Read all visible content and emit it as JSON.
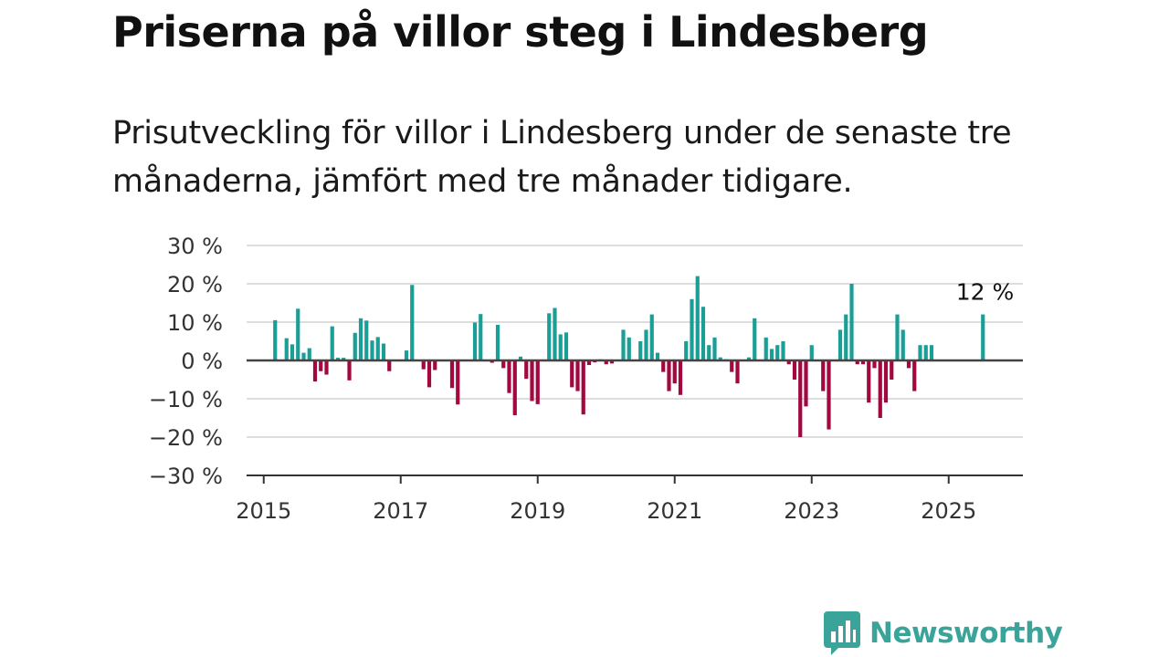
{
  "title": "Priserna på villor steg i Lindesberg",
  "subtitle": "Prisutveckling för villor i Lindesberg under de senaste tre månaderna, jämfört med tre månader tidigare.",
  "brand": {
    "name": "Newsworthy",
    "color": "#3aa39a"
  },
  "colors": {
    "positive": "#1a9e96",
    "negative": "#a3073f",
    "grid": "#dddddd",
    "axis": "#333333",
    "zero": "#444444"
  },
  "chart_data": {
    "type": "bar",
    "title": "Priserna på villor steg i Lindesberg",
    "xlabel": "",
    "ylabel": "",
    "ylim": [
      -30,
      30
    ],
    "xlim": [
      "2014-10",
      "2026-02"
    ],
    "y_ticks": [
      30,
      20,
      10,
      0,
      -10,
      -20,
      -30
    ],
    "y_tick_labels": [
      "30 %",
      "20 %",
      "10 %",
      "0 %",
      "−10 %",
      "−20 %",
      "−30 %"
    ],
    "x_ticks": [
      "2015-01",
      "2017-01",
      "2019-01",
      "2021-01",
      "2023-01",
      "2025-01"
    ],
    "x_tick_labels": [
      "2015",
      "2017",
      "2019",
      "2021",
      "2023",
      "2025"
    ],
    "grid": "horizontal",
    "annotations": [
      {
        "x": "2025-07",
        "y": 12,
        "text": "12 %"
      }
    ],
    "series": [
      {
        "x": [
          "2015-03",
          "2015-05",
          "2015-06",
          "2015-07",
          "2015-08",
          "2015-09",
          "2015-10",
          "2015-11",
          "2015-12",
          "2016-01",
          "2016-02",
          "2016-03",
          "2016-04",
          "2016-05",
          "2016-06",
          "2016-07",
          "2016-08",
          "2016-09",
          "2016-10",
          "2016-11",
          "2016-12",
          "2017-02",
          "2017-03",
          "2017-05",
          "2017-06",
          "2017-07",
          "2017-10",
          "2017-11",
          "2018-02",
          "2018-03",
          "2018-05",
          "2018-06",
          "2018-07",
          "2018-08",
          "2018-09",
          "2018-10",
          "2018-11",
          "2018-12",
          "2019-01",
          "2019-03",
          "2019-04",
          "2019-05",
          "2019-06",
          "2019-07",
          "2019-08",
          "2019-09",
          "2019-10",
          "2019-11",
          "2019-12",
          "2020-01",
          "2020-02",
          "2020-04",
          "2020-05",
          "2020-07",
          "2020-08",
          "2020-09",
          "2020-10",
          "2020-11",
          "2020-12",
          "2021-01",
          "2021-02",
          "2021-03",
          "2021-04",
          "2021-05",
          "2021-06",
          "2021-07",
          "2021-08",
          "2021-09",
          "2021-10",
          "2021-11",
          "2021-12",
          "2022-02",
          "2022-03",
          "2022-05",
          "2022-06",
          "2022-07",
          "2022-08",
          "2022-09",
          "2022-10",
          "2022-11",
          "2022-12",
          "2023-01",
          "2023-03",
          "2023-04",
          "2023-06",
          "2023-07",
          "2023-08",
          "2023-09",
          "2023-10",
          "2023-11",
          "2023-12",
          "2024-01",
          "2024-02",
          "2024-03",
          "2024-04",
          "2024-05",
          "2024-06",
          "2024-07",
          "2024-08",
          "2024-09",
          "2024-10",
          "2025-07"
        ],
        "values": [
          10.5,
          5.8,
          4.2,
          13.5,
          2.0,
          3.2,
          -5.5,
          -2.8,
          -3.7,
          8.9,
          0.7,
          0.7,
          -5.2,
          7.2,
          11.0,
          10.4,
          5.2,
          6.1,
          4.4,
          -2.8,
          0.2,
          2.6,
          19.7,
          -2.3,
          -7.0,
          -2.5,
          -7.2,
          -11.5,
          9.9,
          12.1,
          -0.6,
          9.3,
          -2.0,
          -8.5,
          -14.3,
          1.0,
          -4.8,
          -10.6,
          -11.4,
          12.3,
          13.7,
          6.8,
          7.3,
          -7.0,
          -8.0,
          -14.1,
          -1.2,
          -0.5,
          0.3,
          -1.0,
          -0.8,
          8.0,
          6.0,
          5.0,
          8.0,
          12.0,
          2.0,
          -3.0,
          -8.0,
          -6.0,
          -9.0,
          5.0,
          16.0,
          22.0,
          14.0,
          4.0,
          6.0,
          0.8,
          0.3,
          -3.0,
          -6.0,
          0.8,
          11.0,
          6.0,
          3.0,
          4.0,
          5.0,
          -1.0,
          -5.0,
          -20.0,
          -12.0,
          4.0,
          -8.0,
          -18.0,
          8.0,
          12.0,
          20.0,
          -1.0,
          -1.0,
          -11.0,
          -2.0,
          -15.0,
          -11.0,
          -5.0,
          12.0,
          8.0,
          -2.0,
          -8.0,
          4.0,
          4.0,
          4.0,
          12.0
        ]
      }
    ]
  }
}
